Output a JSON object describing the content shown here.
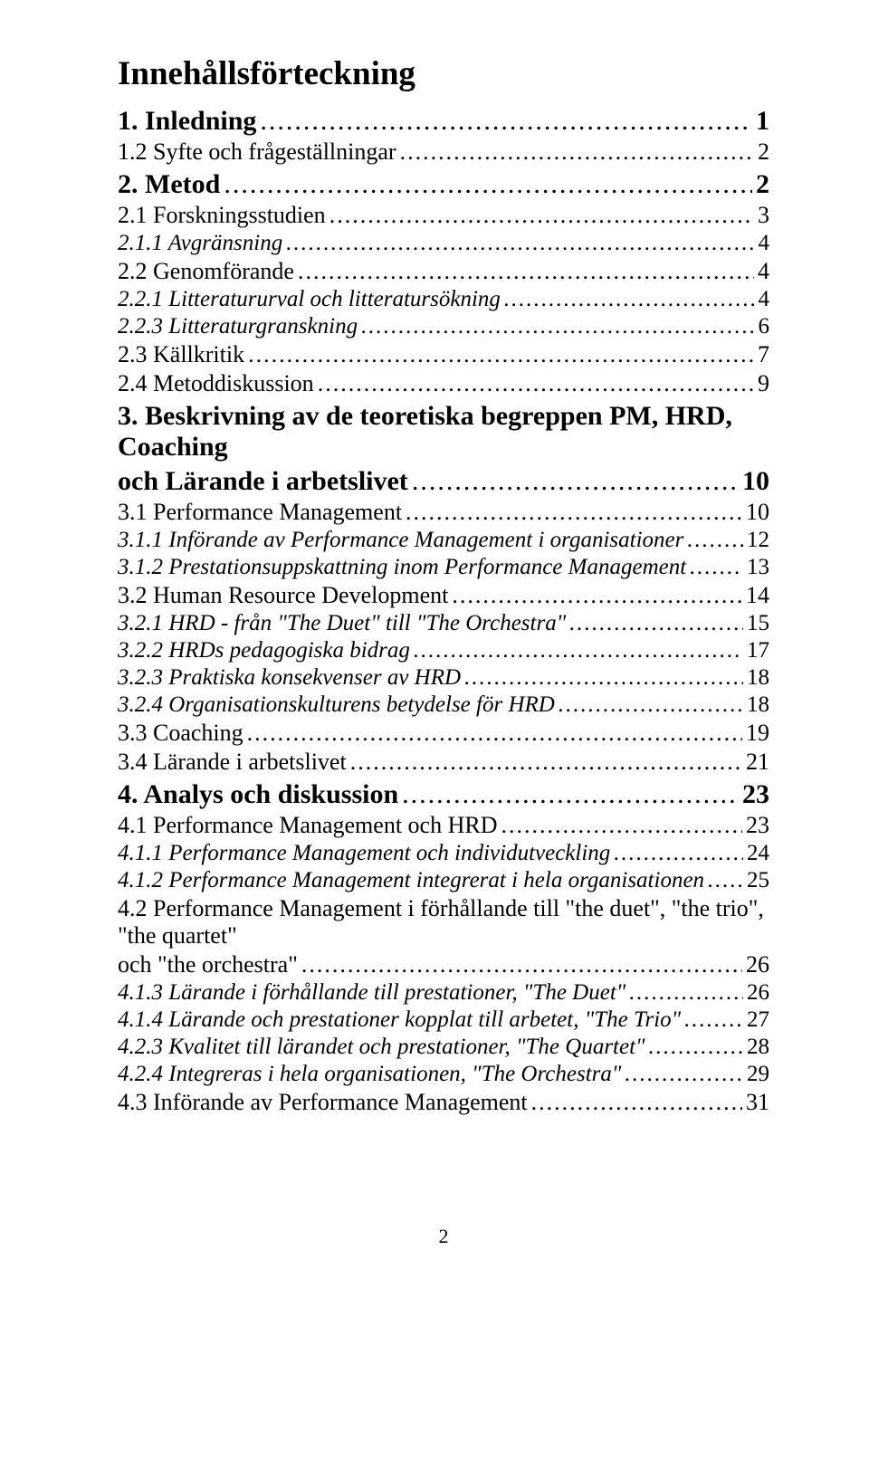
{
  "title": "Innehållsförteckning",
  "page_number": "2",
  "toc": [
    {
      "level": 1,
      "label": "1. Inledning",
      "page": "1"
    },
    {
      "level": 2,
      "label": "1.2 Syfte och frågeställningar",
      "page": "2"
    },
    {
      "level": 1,
      "label": "2. Metod",
      "page": "2"
    },
    {
      "level": 2,
      "label": "2.1 Forskningsstudien",
      "page": "3"
    },
    {
      "level": 3,
      "label": "2.1.1 Avgränsning",
      "page": "4"
    },
    {
      "level": 2,
      "label": "2.2 Genomförande",
      "page": "4"
    },
    {
      "level": 3,
      "label": "2.2.1 Litteratururval och litteratursökning",
      "page": "4"
    },
    {
      "level": 3,
      "label": "2.2.3 Litteraturgranskning",
      "page": "6"
    },
    {
      "level": 2,
      "label": "2.3 Källkritik",
      "page": "7"
    },
    {
      "level": 2,
      "label": "2.4 Metoddiskussion",
      "page": "9"
    },
    {
      "level": 1,
      "label": "3. Beskrivning av de teoretiska begreppen PM, HRD, Coaching och Lärande i arbetslivet",
      "page": "10",
      "wrap": true
    },
    {
      "level": 2,
      "label": "3.1 Performance Management",
      "page": "10"
    },
    {
      "level": 3,
      "label": "3.1.1 Införande av Performance Management i organisationer",
      "page": "12"
    },
    {
      "level": 3,
      "label": "3.1.2 Prestationsuppskattning inom Performance Management",
      "page": "13"
    },
    {
      "level": 2,
      "label": "3.2 Human Resource Development",
      "page": "14"
    },
    {
      "level": 3,
      "label": "3.2.1 HRD - från \"The Duet\" till \"The Orchestra\"",
      "page": "15"
    },
    {
      "level": 3,
      "label": "3.2.2 HRDs pedagogiska bidrag",
      "page": "17"
    },
    {
      "level": 3,
      "label": "3.2.3 Praktiska konsekvenser av HRD",
      "page": "18"
    },
    {
      "level": 3,
      "label": "3.2.4 Organisationskulturens betydelse för HRD",
      "page": "18"
    },
    {
      "level": 2,
      "label": "3.3 Coaching",
      "page": "19"
    },
    {
      "level": 2,
      "label": "3.4 Lärande i arbetslivet",
      "page": "21"
    },
    {
      "level": 1,
      "label": "4. Analys och diskussion",
      "page": "23"
    },
    {
      "level": 2,
      "label": "4.1 Performance Management och HRD",
      "page": "23"
    },
    {
      "level": 3,
      "label": "4.1.1 Performance Management och individutveckling",
      "page": "24"
    },
    {
      "level": 3,
      "label": "4.1.2 Performance Management integrerat i hela organisationen",
      "page": "25"
    },
    {
      "level": 2,
      "label": "4.2 Performance Management i förhållande till \"the duet\", \"the trio\", \"the quartet\" och \"the orchestra\"",
      "page": "26",
      "wrap": true
    },
    {
      "level": 3,
      "label": "4.1.3 Lärande i förhållande till prestationer, \"The Duet\"",
      "page": "26"
    },
    {
      "level": 3,
      "label": "4.1.4 Lärande och prestationer kopplat till arbetet, \"The Trio\"",
      "page": "27"
    },
    {
      "level": 3,
      "label": "4.2.3 Kvalitet till lärandet och prestationer, \"The Quartet\"",
      "page": "28"
    },
    {
      "level": 3,
      "label": "4.2.4 Integreras i hela organisationen, \"The Orchestra\"",
      "page": "29"
    },
    {
      "level": 2,
      "label": "4.3 Införande av Performance Management",
      "page": "31"
    }
  ]
}
